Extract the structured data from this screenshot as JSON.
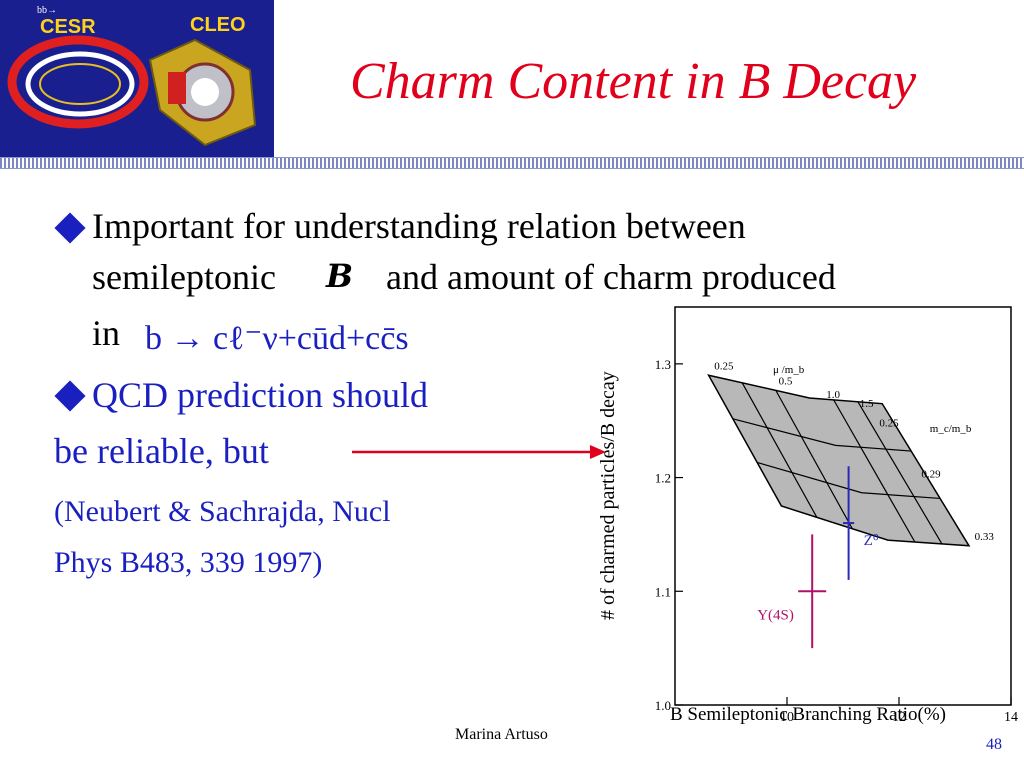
{
  "logo": {
    "cesr": "CESR",
    "cleo": "CLEO",
    "tiny": "bb→"
  },
  "slide": {
    "title": "Charm Content in B Decay",
    "bullet1_line1": "Important for understanding relation between",
    "bullet1_line2a": "semileptonic",
    "bullet1_symbol": "B",
    "bullet1_line2b": "and amount of charm produced",
    "bullet1_line3": "in",
    "formula": "b → cℓ⁻ν+cūd+cc̄s",
    "bullet2_line1": "QCD prediction should",
    "bullet2_line2": "be reliable,  but",
    "reference_line1": "(Neubert & Sachrajda, Nucl",
    "reference_line2": "Phys B483, 339 1997)"
  },
  "footer": {
    "author": "Marina Artuso",
    "page": "48"
  },
  "colors": {
    "title": "#e0001b",
    "text_blue": "#1a1fc0",
    "logo_bg": "#1a1f8f",
    "arrow": "#e0001b",
    "upsilon": "#b0106a",
    "z0": "#2a2ab8",
    "band_fill": "#b8b8b8"
  },
  "chart_data": {
    "type": "scatter",
    "xlabel": "B Semileptonic Branching Ratio(%)",
    "ylabel": "# of charmed particles/B decay",
    "xlim": [
      8,
      14
    ],
    "ylim": [
      1.0,
      1.35
    ],
    "xticks": [
      "10",
      "12",
      "14"
    ],
    "xtick_values": [
      10,
      12,
      14
    ],
    "yticks": [
      "1.0",
      "1.1",
      "1.2",
      "1.3"
    ],
    "ytick_values": [
      1.0,
      1.1,
      1.2,
      1.3
    ],
    "band_labels": {
      "mu_header": "μ /m_b",
      "mu_values": [
        "0.25",
        "0.5",
        "1.0",
        "1.5"
      ],
      "mc_header": "m_c/m_b",
      "mc_values": [
        "0.25",
        "0.29",
        "0.33"
      ]
    },
    "band_outline": [
      [
        8.6,
        1.29
      ],
      [
        10.4,
        1.27
      ],
      [
        11.7,
        1.265
      ],
      [
        13.25,
        1.14
      ],
      [
        11.8,
        1.145
      ],
      [
        9.9,
        1.175
      ]
    ],
    "points": [
      {
        "name": "Υ(4S)",
        "x": 10.45,
        "y": 1.1,
        "xerr": 0.25,
        "yerr": 0.05
      },
      {
        "name": "Z⁰",
        "x": 11.1,
        "y": 1.16,
        "xerr": 0.1,
        "yerr": 0.05
      }
    ]
  }
}
